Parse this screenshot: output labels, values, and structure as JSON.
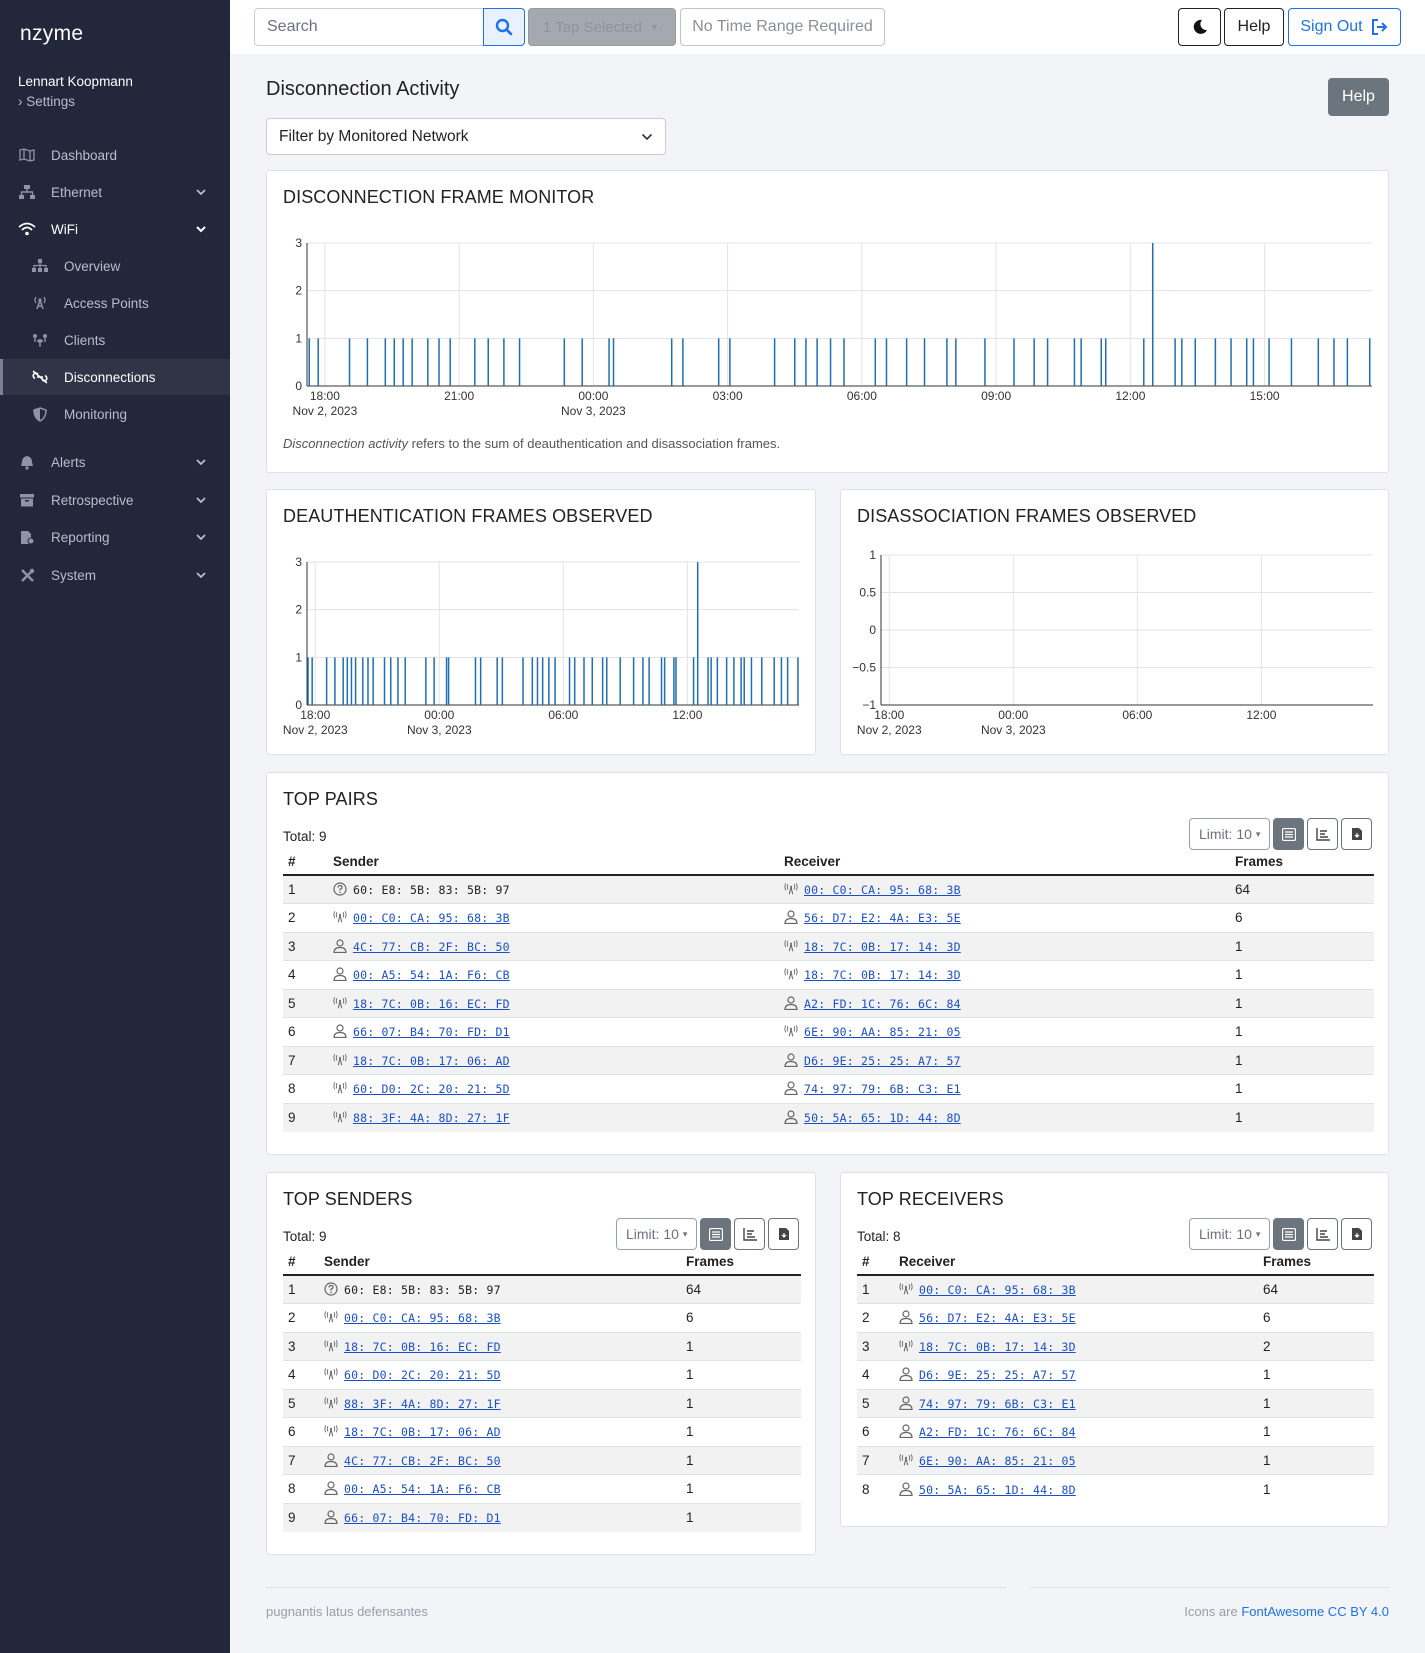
{
  "app": {
    "brand": "nzyme",
    "user": "Lennart Koopmann",
    "settings": "Settings"
  },
  "topbar": {
    "search_placeholder": "Search",
    "tap_selector": "1 Tap Selected",
    "time_range": "No Time Range Required",
    "help": "Help",
    "sign_out": "Sign Out"
  },
  "sidebar": {
    "dashboard": "Dashboard",
    "ethernet": "Ethernet",
    "wifi": "WiFi",
    "wifi_items": [
      "Overview",
      "Access Points",
      "Clients",
      "Disconnections",
      "Monitoring"
    ],
    "alerts": "Alerts",
    "retrospective": "Retrospective",
    "reporting": "Reporting",
    "system": "System"
  },
  "main": {
    "title": "Disconnection Activity",
    "help": "Help",
    "filter": "Filter by Monitored Network",
    "monitor_title": "DISCONNECTION FRAME MONITOR",
    "note_em": "Disconnection activity",
    "note_rest": " refers to the sum of deauthentication and disassociation frames.",
    "deauth_title": "DEAUTHENTICATION FRAMES OBSERVED",
    "disassoc_title": "DISASSOCIATION FRAMES OBSERVED",
    "pairs_title": "TOP PAIRS",
    "pairs_total": "Total: 9",
    "senders_title": "TOP SENDERS",
    "senders_total": "Total: 9",
    "receivers_title": "TOP RECEIVERS",
    "receivers_total": "Total: 8",
    "limit": "Limit: 10"
  },
  "tables": {
    "pairs_headers": [
      "#",
      "Sender",
      "Receiver",
      "Frames"
    ],
    "pairs": [
      {
        "n": "1",
        "s": "60: E8: 5B: 83: 5B: 97",
        "s_type": "unknown",
        "r": "00: C0: CA: 95: 68: 3B",
        "r_type": "ap",
        "f": "64"
      },
      {
        "n": "2",
        "s": "00: C0: CA: 95: 68: 3B",
        "s_type": "ap",
        "r": "56: D7: E2: 4A: E3: 5E",
        "r_type": "client",
        "f": "6"
      },
      {
        "n": "3",
        "s": "4C: 77: CB: 2F: BC: 50",
        "s_type": "client",
        "r": "18: 7C: 0B: 17: 14: 3D",
        "r_type": "ap",
        "f": "1"
      },
      {
        "n": "4",
        "s": "00: A5: 54: 1A: F6: CB",
        "s_type": "client",
        "r": "18: 7C: 0B: 17: 14: 3D",
        "r_type": "ap",
        "f": "1"
      },
      {
        "n": "5",
        "s": "18: 7C: 0B: 16: EC: FD",
        "s_type": "ap",
        "r": "A2: FD: 1C: 76: 6C: 84",
        "r_type": "client",
        "f": "1"
      },
      {
        "n": "6",
        "s": "66: 07: B4: 70: FD: D1",
        "s_type": "client",
        "r": "6E: 90: AA: 85: 21: 05",
        "r_type": "ap",
        "f": "1"
      },
      {
        "n": "7",
        "s": "18: 7C: 0B: 17: 06: AD",
        "s_type": "ap",
        "r": "D6: 9E: 25: 25: A7: 57",
        "r_type": "client",
        "f": "1"
      },
      {
        "n": "8",
        "s": "60: D0: 2C: 20: 21: 5D",
        "s_type": "ap",
        "r": "74: 97: 79: 6B: C3: E1",
        "r_type": "client",
        "f": "1"
      },
      {
        "n": "9",
        "s": "88: 3F: 4A: 8D: 27: 1F",
        "s_type": "ap",
        "r": "50: 5A: 65: 1D: 44: 8D",
        "r_type": "client",
        "f": "1"
      }
    ],
    "senders_headers": [
      "#",
      "Sender",
      "Frames"
    ],
    "senders": [
      {
        "n": "1",
        "m": "60: E8: 5B: 83: 5B: 97",
        "t": "unknown",
        "f": "64"
      },
      {
        "n": "2",
        "m": "00: C0: CA: 95: 68: 3B",
        "t": "ap",
        "f": "6"
      },
      {
        "n": "3",
        "m": "18: 7C: 0B: 16: EC: FD",
        "t": "ap",
        "f": "1"
      },
      {
        "n": "4",
        "m": "60: D0: 2C: 20: 21: 5D",
        "t": "ap",
        "f": "1"
      },
      {
        "n": "5",
        "m": "88: 3F: 4A: 8D: 27: 1F",
        "t": "ap",
        "f": "1"
      },
      {
        "n": "6",
        "m": "18: 7C: 0B: 17: 06: AD",
        "t": "ap",
        "f": "1"
      },
      {
        "n": "7",
        "m": "4C: 77: CB: 2F: BC: 50",
        "t": "client",
        "f": "1"
      },
      {
        "n": "8",
        "m": "00: A5: 54: 1A: F6: CB",
        "t": "client",
        "f": "1"
      },
      {
        "n": "9",
        "m": "66: 07: B4: 70: FD: D1",
        "t": "client",
        "f": "1"
      }
    ],
    "receivers_headers": [
      "#",
      "Receiver",
      "Frames"
    ],
    "receivers": [
      {
        "n": "1",
        "m": "00: C0: CA: 95: 68: 3B",
        "t": "ap",
        "f": "64"
      },
      {
        "n": "2",
        "m": "56: D7: E2: 4A: E3: 5E",
        "t": "client",
        "f": "6"
      },
      {
        "n": "3",
        "m": "18: 7C: 0B: 17: 14: 3D",
        "t": "ap",
        "f": "2"
      },
      {
        "n": "4",
        "m": "D6: 9E: 25: 25: A7: 57",
        "t": "client",
        "f": "1"
      },
      {
        "n": "5",
        "m": "74: 97: 79: 6B: C3: E1",
        "t": "client",
        "f": "1"
      },
      {
        "n": "6",
        "m": "A2: FD: 1C: 76: 6C: 84",
        "t": "client",
        "f": "1"
      },
      {
        "n": "7",
        "m": "6E: 90: AA: 85: 21: 05",
        "t": "ap",
        "f": "1"
      },
      {
        "n": "8",
        "m": "50: 5A: 65: 1D: 44: 8D",
        "t": "client",
        "f": "1"
      }
    ]
  },
  "footer": {
    "left": "pugnantis latus defensantes",
    "right_prefix": "Icons are ",
    "right_link": "FontAwesome CC BY 4.0"
  },
  "colors": {
    "bar": "#1f6fb4",
    "sidebar": "#22273b",
    "accent": "#1a73e8"
  },
  "chart_data": [
    {
      "type": "bar",
      "name": "monitor",
      "title": "DISCONNECTION FRAME MONITOR",
      "x_ticks": [
        "18:00",
        "21:00",
        "00:00",
        "03:00",
        "06:00",
        "09:00",
        "12:00",
        "15:00"
      ],
      "x_tick_dates": [
        "Nov 2, 2023",
        "",
        "Nov 3, 2023",
        "",
        "",
        "",
        "",
        ""
      ],
      "ylim": [
        0,
        3
      ],
      "y_ticks": [
        "0",
        "1",
        "2",
        "3"
      ],
      "x_range_hours": [
        -0.4,
        23.4
      ],
      "bars_hours": [
        -0.35,
        -0.15,
        0.55,
        0.95,
        1.35,
        1.55,
        1.75,
        1.95,
        2.3,
        2.55,
        2.8,
        3.35,
        3.65,
        4.0,
        4.35,
        5.35,
        5.75,
        6.35,
        6.45,
        7.75,
        8.0,
        8.8,
        9.05,
        10.05,
        10.5,
        10.75,
        11.0,
        11.3,
        11.6,
        12.3,
        12.55,
        13.0,
        13.4,
        13.9,
        14.1,
        14.75,
        15.4,
        15.85,
        16.15,
        16.75,
        16.9,
        17.35,
        17.45,
        18.3,
        18.5,
        19.0,
        19.15,
        19.45,
        19.9,
        20.25,
        20.6,
        20.75,
        21.1,
        21.6,
        22.2,
        22.55,
        22.85,
        23.35
      ],
      "bars_values": [
        1,
        1,
        1,
        1,
        1,
        1,
        1,
        1,
        1,
        1,
        1,
        1,
        1,
        1,
        1,
        1,
        1,
        1,
        1,
        1,
        1,
        1,
        1,
        1,
        1,
        1,
        1,
        1,
        1,
        1,
        1,
        1,
        1,
        1,
        1,
        1,
        1,
        1,
        1,
        1,
        1,
        1,
        1,
        1,
        3,
        1,
        1,
        1,
        1,
        1,
        1,
        1,
        1,
        1,
        1,
        1,
        1,
        1
      ]
    },
    {
      "type": "bar",
      "name": "deauthentication",
      "title": "DEAUTHENTICATION FRAMES OBSERVED",
      "x_ticks": [
        "18:00",
        "00:00",
        "06:00",
        "12:00"
      ],
      "x_tick_dates": [
        "Nov 2, 2023",
        "Nov 3, 2023",
        "",
        ""
      ],
      "ylim": [
        0,
        3
      ],
      "y_ticks": [
        "0",
        "1",
        "2",
        "3"
      ],
      "x_range_hours": [
        -0.4,
        23.4
      ],
      "bars_hours": [
        -0.35,
        -0.15,
        0.55,
        0.95,
        1.35,
        1.55,
        1.75,
        1.95,
        2.3,
        2.55,
        2.8,
        3.35,
        3.65,
        4.0,
        4.35,
        5.35,
        5.75,
        6.35,
        6.45,
        7.75,
        8.0,
        8.8,
        9.05,
        10.05,
        10.5,
        10.75,
        11.0,
        11.3,
        11.6,
        12.3,
        12.55,
        13.0,
        13.4,
        13.9,
        14.1,
        14.75,
        15.4,
        15.85,
        16.15,
        16.75,
        16.9,
        17.35,
        17.45,
        18.3,
        18.5,
        19.0,
        19.15,
        19.45,
        19.9,
        20.25,
        20.6,
        20.75,
        21.1,
        21.6,
        22.2,
        22.55,
        22.85,
        23.35
      ],
      "bars_values": [
        1,
        1,
        1,
        1,
        1,
        1,
        1,
        1,
        1,
        1,
        1,
        1,
        1,
        1,
        1,
        1,
        1,
        1,
        1,
        1,
        1,
        1,
        1,
        1,
        1,
        1,
        1,
        1,
        1,
        1,
        1,
        1,
        1,
        1,
        1,
        1,
        1,
        1,
        1,
        1,
        1,
        1,
        1,
        1,
        3,
        1,
        1,
        1,
        1,
        1,
        1,
        1,
        1,
        1,
        1,
        1,
        1,
        1
      ]
    },
    {
      "type": "bar",
      "name": "disassociation",
      "title": "DISASSOCIATION FRAMES OBSERVED",
      "x_ticks": [
        "18:00",
        "00:00",
        "06:00",
        "12:00"
      ],
      "x_tick_dates": [
        "Nov 2, 2023",
        "Nov 3, 2023",
        "",
        ""
      ],
      "ylim": [
        -1,
        1
      ],
      "y_ticks": [
        "−1",
        "−0.5",
        "0",
        "0.5",
        "1"
      ],
      "x_range_hours": [
        -0.4,
        23.4
      ],
      "bars_hours": [],
      "bars_values": []
    }
  ]
}
